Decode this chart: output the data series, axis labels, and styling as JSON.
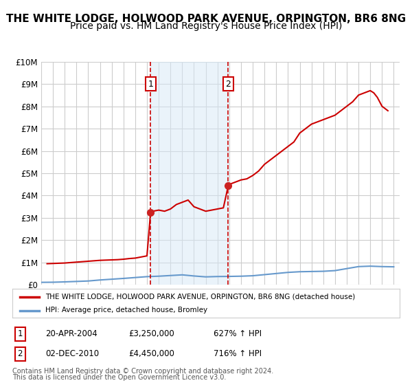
{
  "title": "THE WHITE LODGE, HOLWOOD PARK AVENUE, ORPINGTON, BR6 8NG",
  "subtitle": "Price paid vs. HM Land Registry's House Price Index (HPI)",
  "title_fontsize": 11,
  "subtitle_fontsize": 10,
  "ylim": [
    0,
    10000000
  ],
  "yticks": [
    0,
    1000000,
    2000000,
    3000000,
    4000000,
    5000000,
    6000000,
    7000000,
    8000000,
    9000000,
    10000000
  ],
  "ytick_labels": [
    "£0",
    "£1M",
    "£2M",
    "£3M",
    "£4M",
    "£5M",
    "£6M",
    "£7M",
    "£8M",
    "£9M",
    "£10M"
  ],
  "xlim_start": 1995.0,
  "xlim_end": 2025.5,
  "background_color": "#ffffff",
  "grid_color": "#cccccc",
  "shade_color": "#d6e8f7",
  "shade_alpha": 0.5,
  "marker1_x": 2004.305,
  "marker1_y": 3250000,
  "marker1_label": "1",
  "marker1_date": "20-APR-2004",
  "marker1_price": "£3,250,000",
  "marker1_hpi": "627% ↑ HPI",
  "marker2_x": 2010.92,
  "marker2_y": 4450000,
  "marker2_label": "2",
  "marker2_date": "02-DEC-2010",
  "marker2_price": "£4,450,000",
  "marker2_hpi": "716% ↑ HPI",
  "red_line_color": "#cc0000",
  "blue_line_color": "#6699cc",
  "marker_box_color": "#cc0000",
  "dashed_line_color": "#cc0000",
  "legend_line1": "THE WHITE LODGE, HOLWOOD PARK AVENUE, ORPINGTON, BR6 8NG (detached house)",
  "legend_line2": "HPI: Average price, detached house, Bromley",
  "footer_line1": "Contains HM Land Registry data © Crown copyright and database right 2024.",
  "footer_line2": "This data is licensed under the Open Government Licence v3.0.",
  "hpi_x": [
    1995,
    1996,
    1997,
    1998,
    1999,
    2000,
    2001,
    2002,
    2003,
    2004,
    2005,
    2006,
    2007,
    2008,
    2009,
    2010,
    2011,
    2012,
    2013,
    2014,
    2015,
    2016,
    2017,
    2018,
    2019,
    2020,
    2021,
    2022,
    2023,
    2024,
    2025
  ],
  "hpi_y": [
    115000,
    120000,
    135000,
    155000,
    175000,
    220000,
    255000,
    290000,
    330000,
    370000,
    390000,
    420000,
    450000,
    400000,
    360000,
    375000,
    380000,
    390000,
    410000,
    460000,
    510000,
    560000,
    590000,
    600000,
    610000,
    640000,
    730000,
    820000,
    840000,
    820000,
    810000
  ],
  "property_x": [
    1995.5,
    1996,
    1996.5,
    1997,
    1997.5,
    1998,
    1998.5,
    1999,
    1999.5,
    2000,
    2000.5,
    2001,
    2001.5,
    2002,
    2002.5,
    2003,
    2003.5,
    2003.8,
    2004.0,
    2004.305,
    2004.5,
    2005,
    2005.5,
    2006,
    2006.5,
    2007,
    2007.5,
    2008,
    2008.5,
    2009,
    2009.5,
    2010,
    2010.5,
    2010.92,
    2011,
    2011.5,
    2012,
    2012.5,
    2013,
    2013.5,
    2014,
    2014.5,
    2015,
    2015.5,
    2016,
    2016.5,
    2017,
    2017.5,
    2018,
    2018.5,
    2019,
    2019.5,
    2020,
    2020.5,
    2021,
    2021.5,
    2022,
    2022.5,
    2023,
    2023.3,
    2023.6,
    2024,
    2024.5
  ],
  "property_y": [
    950000,
    960000,
    970000,
    980000,
    1000000,
    1020000,
    1040000,
    1060000,
    1080000,
    1100000,
    1110000,
    1120000,
    1130000,
    1150000,
    1180000,
    1200000,
    1250000,
    1280000,
    1300000,
    3250000,
    3300000,
    3350000,
    3300000,
    3400000,
    3600000,
    3700000,
    3800000,
    3500000,
    3400000,
    3300000,
    3350000,
    3400000,
    3450000,
    4450000,
    4500000,
    4600000,
    4700000,
    4750000,
    4900000,
    5100000,
    5400000,
    5600000,
    5800000,
    6000000,
    6200000,
    6400000,
    6800000,
    7000000,
    7200000,
    7300000,
    7400000,
    7500000,
    7600000,
    7800000,
    8000000,
    8200000,
    8500000,
    8600000,
    8700000,
    8600000,
    8400000,
    8000000,
    7800000
  ]
}
